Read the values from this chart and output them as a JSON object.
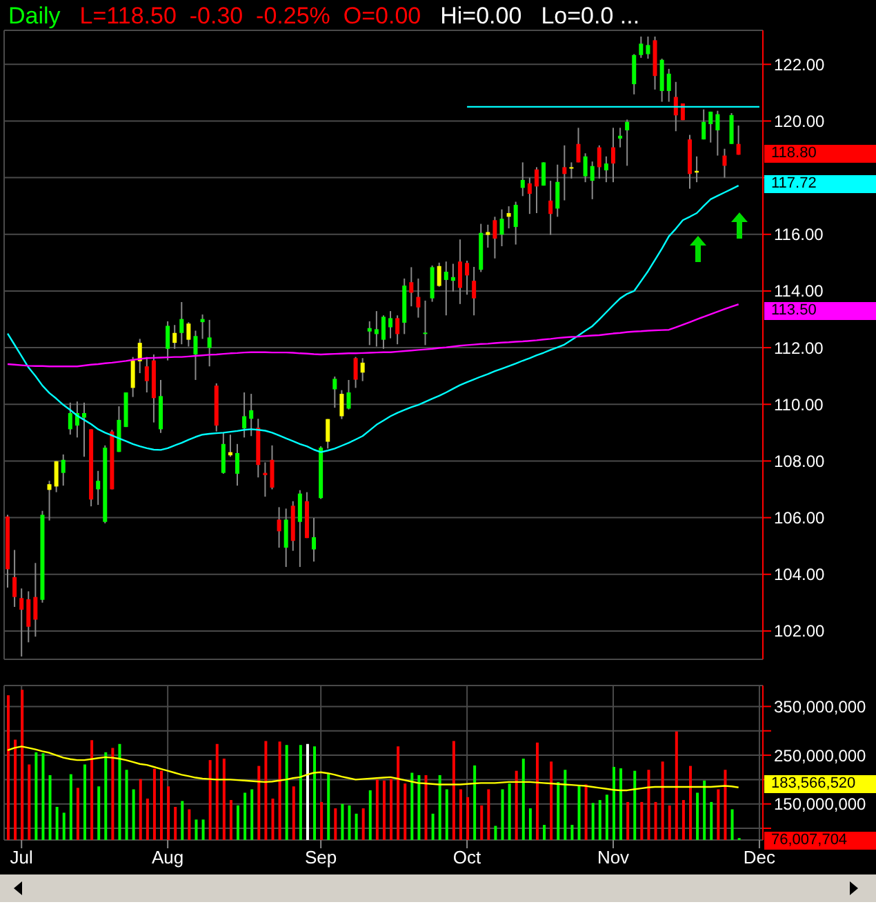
{
  "chart_data": [
    {
      "type": "candlestick",
      "title": "Daily",
      "subtitle": "L=118.50  -0.30  -0.25%  O=0.00",
      "annotations": [
        "Hi=0.00",
        "Lo=0.0 ...",
        "118.80",
        "117.72",
        "113.50"
      ],
      "categories": [
        null,
        null,
        "Jul",
        null,
        null,
        null,
        null,
        null,
        null,
        null,
        null,
        null,
        null,
        null,
        null,
        null,
        null,
        null,
        null,
        null,
        null,
        null,
        null,
        "Aug",
        null,
        null,
        null,
        null,
        null,
        null,
        null,
        null,
        null,
        null,
        null,
        null,
        null,
        null,
        null,
        null,
        null,
        null,
        null,
        null,
        null,
        "Sep",
        null,
        null,
        null,
        null,
        null,
        null,
        null,
        null,
        null,
        null,
        null,
        null,
        null,
        null,
        null,
        null,
        null,
        null,
        null,
        null,
        "Oct",
        null,
        null,
        null,
        null,
        null,
        null,
        null,
        null,
        null,
        null,
        null,
        null,
        null,
        null,
        null,
        null,
        null,
        null,
        null,
        null,
        "Nov",
        null,
        null,
        null,
        null,
        null,
        null,
        null,
        null,
        null,
        null,
        null,
        null,
        null,
        null,
        null,
        null,
        null,
        null,
        null,
        null,
        "Dec"
      ],
      "ohlc": [
        [
          106.04,
          106.1,
          103.53,
          104.18
        ],
        [
          103.9,
          104.86,
          102.85,
          103.2
        ],
        [
          103.16,
          103.5,
          101.1,
          102.75
        ],
        [
          103.12,
          103.4,
          101.6,
          102.15
        ],
        [
          103.2,
          104.4,
          101.8,
          102.4
        ],
        [
          103.1,
          106.24,
          103.0,
          106.1
        ],
        [
          106.98,
          107.3,
          105.9,
          107.18
        ],
        [
          107.1,
          108.0,
          106.9,
          107.99
        ],
        [
          107.58,
          108.23,
          107.13,
          108.04
        ],
        [
          109.12,
          110.06,
          108.93,
          109.69
        ],
        [
          109.25,
          110.1,
          108.83,
          109.69
        ],
        [
          109.53,
          110.06,
          108.15,
          109.69
        ],
        [
          109.12,
          109.12,
          106.4,
          106.64
        ],
        [
          107.0,
          107.65,
          106.45,
          107.3
        ],
        [
          105.85,
          108.55,
          105.8,
          108.47
        ],
        [
          109.04,
          109.1,
          107.0,
          107.0
        ],
        [
          108.32,
          109.93,
          108.32,
          109.45
        ],
        [
          109.2,
          110.42,
          109.2,
          110.42
        ],
        [
          110.58,
          111.67,
          110.26,
          111.55
        ],
        [
          111.52,
          112.31,
          111.1,
          112.17
        ],
        [
          111.34,
          111.67,
          110.42,
          110.82
        ],
        [
          111.55,
          111.76,
          109.36,
          110.22
        ],
        [
          109.12,
          110.86,
          108.99,
          110.29
        ],
        [
          111.96,
          112.93,
          111.55,
          112.77
        ],
        [
          112.17,
          112.8,
          111.96,
          112.52
        ],
        [
          112.52,
          113.61,
          112.12,
          113.01
        ],
        [
          112.28,
          112.9,
          112.04,
          112.85
        ],
        [
          111.76,
          112.6,
          110.86,
          112.41
        ],
        [
          112.9,
          113.17,
          112.31,
          113.01
        ],
        [
          111.99,
          112.98,
          111.34,
          112.36
        ],
        [
          110.66,
          110.74,
          109.04,
          109.25
        ],
        [
          107.58,
          108.99,
          107.55,
          108.6
        ],
        [
          108.2,
          108.93,
          108.15,
          108.31
        ],
        [
          107.55,
          108.6,
          107.13,
          108.28
        ],
        [
          109.15,
          110.42,
          108.83,
          109.58
        ],
        [
          109.49,
          110.37,
          108.88,
          109.79
        ],
        [
          109.17,
          109.49,
          107.42,
          107.86
        ],
        [
          107.58,
          107.95,
          106.74,
          107.5
        ],
        [
          108.04,
          108.55,
          107.0,
          107.06
        ],
        [
          105.93,
          106.37,
          104.94,
          105.52
        ],
        [
          104.94,
          106.32,
          104.26,
          105.93
        ],
        [
          106.42,
          106.58,
          104.83,
          105.18
        ],
        [
          105.85,
          106.97,
          104.26,
          106.85
        ],
        [
          106.58,
          106.9,
          105.28,
          105.28
        ],
        [
          104.88,
          105.99,
          104.45,
          105.31
        ],
        [
          106.69,
          108.52,
          106.66,
          108.47
        ],
        [
          108.68,
          109.48,
          108.44,
          109.48
        ],
        [
          110.53,
          110.98,
          109.88,
          110.9
        ],
        [
          109.58,
          110.5,
          109.48,
          110.37
        ],
        [
          109.85,
          110.86,
          109.82,
          110.42
        ],
        [
          111.63,
          111.67,
          110.58,
          110.87
        ],
        [
          111.12,
          111.63,
          110.82,
          111.47
        ],
        [
          112.57,
          112.93,
          112.09,
          112.69
        ],
        [
          112.48,
          113.29,
          112.04,
          112.65
        ],
        [
          112.28,
          113.14,
          111.96,
          113.09
        ],
        [
          112.72,
          113.29,
          112.33,
          113.04
        ],
        [
          113.04,
          113.14,
          112.12,
          112.48
        ],
        [
          112.88,
          114.44,
          112.48,
          114.19
        ],
        [
          114.31,
          114.84,
          113.46,
          113.94
        ],
        [
          113.79,
          114.44,
          113.06,
          113.42
        ],
        [
          112.49,
          113.66,
          112.09,
          112.53
        ],
        [
          113.74,
          114.9,
          113.62,
          114.84
        ],
        [
          114.18,
          115.0,
          114.15,
          114.88
        ],
        [
          114.39,
          115.04,
          113.14,
          114.68
        ],
        [
          114.36,
          114.96,
          113.98,
          114.49
        ],
        [
          115.04,
          115.82,
          113.54,
          114.11
        ],
        [
          114.99,
          115.07,
          113.87,
          114.55
        ],
        [
          114.36,
          114.85,
          113.14,
          113.74
        ],
        [
          114.75,
          116.37,
          114.67,
          116.05
        ],
        [
          115.98,
          116.34,
          115.53,
          116.08
        ],
        [
          116.5,
          116.62,
          115.15,
          115.85
        ],
        [
          115.99,
          116.88,
          115.58,
          116.55
        ],
        [
          116.62,
          116.99,
          116.21,
          116.75
        ],
        [
          116.26,
          117.15,
          115.64,
          117.04
        ],
        [
          117.64,
          118.54,
          117.35,
          117.92
        ],
        [
          117.8,
          118.0,
          116.72,
          117.43
        ],
        [
          118.29,
          118.37,
          116.75,
          117.69
        ],
        [
          117.72,
          118.54,
          117.72,
          118.54
        ],
        [
          117.19,
          117.89,
          115.98,
          116.72
        ],
        [
          116.91,
          118.46,
          116.62,
          117.85
        ],
        [
          118.37,
          119.14,
          117.2,
          118.13
        ],
        [
          118.32,
          118.54,
          117.97,
          118.37
        ],
        [
          119.19,
          119.76,
          118.54,
          118.54
        ],
        [
          118.05,
          118.86,
          117.84,
          118.75
        ],
        [
          117.89,
          118.57,
          117.24,
          118.41
        ],
        [
          119.07,
          119.14,
          117.97,
          118.37
        ],
        [
          118.26,
          118.75,
          117.84,
          118.5
        ],
        [
          119.07,
          119.76,
          117.84,
          118.5
        ],
        [
          119.38,
          119.76,
          119.07,
          119.48
        ],
        [
          119.67,
          120.05,
          118.42,
          119.97
        ],
        [
          121.3,
          122.36,
          120.94,
          122.33
        ],
        [
          122.33,
          122.98,
          122.23,
          122.73
        ],
        [
          122.36,
          122.98,
          122.2,
          122.68
        ],
        [
          122.85,
          122.98,
          121.11,
          121.59
        ],
        [
          121.06,
          122.2,
          120.68,
          122.16
        ],
        [
          121.06,
          121.84,
          120.68,
          121.67
        ],
        [
          120.85,
          121.38,
          119.64,
          120.2
        ],
        [
          120.62,
          120.62,
          120.03,
          120.03
        ],
        [
          119.35,
          119.51,
          117.61,
          118.13
        ],
        [
          118.18,
          118.75,
          117.84,
          118.24
        ],
        [
          119.35,
          120.41,
          119.35,
          119.97
        ],
        [
          119.89,
          120.33,
          119.24,
          120.33
        ],
        [
          119.67,
          120.36,
          118.78,
          120.24
        ],
        [
          118.78,
          119.02,
          118.0,
          118.42
        ],
        [
          119.19,
          120.28,
          119.19,
          120.21
        ],
        [
          119.19,
          119.84,
          118.81,
          118.81
        ],
        null,
        null,
        null
      ],
      "colors": [
        "#ff0000",
        "#ff0000",
        "#ff0000",
        "#ff0000",
        "#ff0000",
        "#00ff00",
        "#ffff00",
        "#ffff00",
        "#00ff00",
        "#00ff00",
        "#00ff00",
        "#00ff00",
        "#ff0000",
        "#00ff00",
        "#00ff00",
        "#ff0000",
        "#00ff00",
        "#00ff00",
        "#ffff00",
        "#ffff00",
        "#ff0000",
        "#ff0000",
        "#00ff00",
        "#00ff00",
        "#ffff00",
        "#00ff00",
        "#ffff00",
        "#00ff00",
        "#00ff00",
        "#00ff00",
        "#ff0000",
        "#00ff00",
        "#ffff00",
        "#00ff00",
        "#00ff00",
        "#00ff00",
        "#ff0000",
        "#ff0000",
        "#ff0000",
        "#ff0000",
        "#00ff00",
        "#ff0000",
        "#00ff00",
        "#ff0000",
        "#00ff00",
        "#00ff00",
        "#ffff00",
        "#00ff00",
        "#ffff00",
        "#00ff00",
        "#ff0000",
        "#ffff00",
        "#00ff00",
        "#00ff00",
        "#00ff00",
        "#00ff00",
        "#ff0000",
        "#00ff00",
        "#ff0000",
        "#ff0000",
        "#00ff00",
        "#00ff00",
        "#ffff00",
        "#00ff00",
        "#00ff00",
        "#ff0000",
        "#ff0000",
        "#ff0000",
        "#00ff00",
        "#ffff00",
        "#ff0000",
        "#00ff00",
        "#ffff00",
        "#00ff00",
        "#00ff00",
        "#ff0000",
        "#ff0000",
        "#00ff00",
        "#ff0000",
        "#00ff00",
        "#ff0000",
        "#ffff00",
        "#ff0000",
        "#00ff00",
        "#00ff00",
        "#ff0000",
        "#00ff00",
        "#ff0000",
        "#00ff00",
        "#00ff00",
        "#00ff00",
        "#00ff00",
        "#00ff00",
        "#ff0000",
        "#00ff00",
        "#00ff00",
        "#ff0000",
        "#ff0000",
        "#ff0000",
        "#ffff00",
        "#00ff00",
        "#00ff00",
        "#00ff00",
        "#ff0000",
        "#00ff00",
        "#ff0000",
        null,
        null,
        null
      ],
      "series": [
        {
          "type": "line",
          "color": "#00ffff",
          "values": [
            112.5,
            112.1,
            111.7,
            111.3,
            111.0,
            110.66,
            110.4,
            110.2,
            109.98,
            109.8,
            109.6,
            109.45,
            109.3,
            109.12,
            109.0,
            108.9,
            108.8,
            108.7,
            108.6,
            108.52,
            108.45,
            108.4,
            108.39,
            108.45,
            108.55,
            108.64,
            108.75,
            108.85,
            108.93,
            108.96,
            108.98,
            109.0,
            109.03,
            109.06,
            109.1,
            109.12,
            109.1,
            109.07,
            109.0,
            108.9,
            108.8,
            108.7,
            108.6,
            108.52,
            108.4,
            108.31,
            108.37,
            108.44,
            108.54,
            108.64,
            108.76,
            108.88,
            109.08,
            109.28,
            109.43,
            109.58,
            109.7,
            109.8,
            109.9,
            109.98,
            110.09,
            110.2,
            110.3,
            110.42,
            110.55,
            110.68,
            110.78,
            110.88,
            110.98,
            111.07,
            111.17,
            111.26,
            111.35,
            111.44,
            111.54,
            111.63,
            111.73,
            111.82,
            111.92,
            112.01,
            112.11,
            112.27,
            112.43,
            112.6,
            112.76,
            113.0,
            113.25,
            113.5,
            113.74,
            113.9,
            114.0,
            114.35,
            114.7,
            115.1,
            115.5,
            115.93,
            116.2,
            116.5,
            116.62,
            116.75,
            117.0,
            117.24,
            117.36,
            117.48,
            117.6,
            117.72,
            null,
            null,
            null
          ]
        },
        {
          "type": "line",
          "color": "#ff00ff",
          "values": [
            111.42,
            111.4,
            111.38,
            111.36,
            111.35,
            111.35,
            111.34,
            111.34,
            111.34,
            111.34,
            111.34,
            111.37,
            111.4,
            111.42,
            111.45,
            111.47,
            111.5,
            111.53,
            111.57,
            111.6,
            111.63,
            111.64,
            111.65,
            111.66,
            111.67,
            111.67,
            111.69,
            111.71,
            111.73,
            111.75,
            111.76,
            111.78,
            111.8,
            111.81,
            111.83,
            111.84,
            111.84,
            111.84,
            111.83,
            111.83,
            111.83,
            111.82,
            111.8,
            111.79,
            111.77,
            111.76,
            111.77,
            111.78,
            111.79,
            111.8,
            111.8,
            111.81,
            111.82,
            111.83,
            111.84,
            111.84,
            111.86,
            111.88,
            111.9,
            111.92,
            111.94,
            111.96,
            111.99,
            112.01,
            112.04,
            112.07,
            112.09,
            112.11,
            112.13,
            112.14,
            112.16,
            112.18,
            112.19,
            112.21,
            112.22,
            112.24,
            112.26,
            112.29,
            112.31,
            112.34,
            112.36,
            112.38,
            112.39,
            112.41,
            112.43,
            112.44,
            112.47,
            112.5,
            112.52,
            112.55,
            112.57,
            112.58,
            112.6,
            112.61,
            112.62,
            112.63,
            112.72,
            112.81,
            112.9,
            113.0,
            113.09,
            113.18,
            113.27,
            113.36,
            113.45,
            113.53,
            null,
            null,
            null
          ]
        },
        {
          "type": "line",
          "color": "#00ffff",
          "x": [
            "Oct",
            "Dec"
          ],
          "values": [
            120.5,
            120.5
          ]
        }
      ],
      "ylim": [
        101,
        123.2
      ],
      "yticks": [
        {
          "value": 102,
          "label": "102.00"
        },
        {
          "value": 104,
          "label": "104.00"
        },
        {
          "value": 106,
          "label": "106.00"
        },
        {
          "value": 108,
          "label": "108.00"
        },
        {
          "value": 110,
          "label": "110.00"
        },
        {
          "value": 112,
          "label": "112.00"
        },
        {
          "value": 114,
          "label": "114.00"
        },
        {
          "value": 116,
          "label": "116.00"
        },
        {
          "value": 118,
          "label": null
        },
        {
          "value": 120,
          "label": "120.00"
        },
        {
          "value": 122,
          "label": "122.00"
        }
      ],
      "grid": true,
      "tick_labels": "y"
    },
    {
      "type": "bar",
      "annotations": [
        "183,566,520",
        "76,007,704"
      ],
      "categories": [
        null,
        null,
        "Jul",
        null,
        null,
        null,
        null,
        null,
        null,
        null,
        null,
        null,
        null,
        null,
        null,
        null,
        null,
        null,
        null,
        null,
        null,
        null,
        null,
        "Aug",
        null,
        null,
        null,
        null,
        null,
        null,
        null,
        null,
        null,
        null,
        null,
        null,
        null,
        null,
        null,
        null,
        null,
        null,
        null,
        null,
        null,
        "Sep",
        null,
        null,
        null,
        null,
        null,
        null,
        null,
        null,
        null,
        null,
        null,
        null,
        null,
        null,
        null,
        null,
        null,
        null,
        null,
        null,
        "Oct",
        null,
        null,
        null,
        null,
        null,
        null,
        null,
        null,
        null,
        null,
        null,
        null,
        null,
        null,
        null,
        null,
        null,
        null,
        null,
        null,
        "Nov",
        null,
        null,
        null,
        null,
        null,
        null,
        null,
        null,
        null,
        null,
        null,
        null,
        null,
        null,
        null,
        null,
        null,
        null,
        null,
        null,
        "Dec"
      ],
      "series": [
        {
          "type": "bar",
          "colors": [
            "#ff0000",
            "#ff0000",
            "#ff0000",
            "#ff0000",
            "#00ff00",
            "#00ff00",
            "#00ff00",
            "#00ff00",
            "#00ff00",
            "#00ff00",
            "#ff0000",
            "#00ff00",
            "#ff0000",
            "#00ff00",
            "#00ff00",
            "#ff0000",
            "#00ff00",
            "#00ff00",
            "#00ff00",
            "#ff0000",
            "#ff0000",
            "#ff0000",
            "#ff0000",
            "#ff0000",
            "#ff0000",
            "#00ff00",
            "#ff0000",
            "#00ff00",
            "#00ff00",
            "#ff0000",
            "#ff0000",
            "#ff0000",
            "#ff0000",
            "#00ff00",
            "#00ff00",
            "#00ff00",
            "#ff0000",
            "#ff0000",
            "#ff0000",
            "#ff0000",
            "#00ff00",
            "#ff0000",
            "#00ff00",
            "#ffffff",
            "#00ff00",
            "#ff0000",
            "#00ff00",
            "#ff0000",
            "#00ff00",
            "#00ff00",
            "#00ff00",
            "#ff0000",
            "#00ff00",
            "#ff0000",
            "#ff0000",
            "#ff0000",
            "#ff0000",
            "#ff0000",
            "#00ff00",
            "#00ff00",
            "#ff0000",
            "#00ff00",
            "#00ff00",
            "#00ff00",
            "#ff0000",
            "#ff0000",
            "#ff0000",
            "#00ff00",
            "#ff0000",
            "#ff0000",
            "#00ff00",
            "#00ff00",
            "#00ff00",
            "#ff0000",
            "#00ff00",
            "#00ff00",
            "#ff0000",
            "#00ff00",
            "#ff0000",
            "#00ff00",
            "#00ff00",
            "#00ff00",
            "#00ff00",
            "#ff0000",
            "#00ff00",
            "#00ff00",
            "#00ff00",
            "#00ff00",
            "#00ff00",
            "#ff0000",
            "#00ff00",
            "#ff0000",
            "#ff0000",
            "#ff0000",
            "#ff0000",
            "#ff0000",
            "#ff0000",
            "#ff0000",
            "#ff0000",
            "#00ff00",
            "#00ff00",
            "#00ff00",
            "#ff0000",
            "#ff0000",
            "#00ff00",
            "#00ff00",
            null,
            null,
            null
          ],
          "values": [
            373000000,
            282000000,
            384000000,
            231000000,
            256000000,
            254000000,
            209000000,
            144000000,
            132000000,
            211000000,
            183000000,
            231000000,
            281000000,
            186000000,
            256000000,
            265000000,
            273000000,
            220000000,
            180000000,
            201000000,
            161000000,
            222000000,
            218000000,
            186000000,
            144000000,
            156000000,
            139000000,
            118000000,
            118000000,
            240000000,
            273000000,
            243000000,
            158000000,
            147000000,
            173000000,
            180000000,
            228000000,
            279000000,
            161000000,
            278000000,
            271000000,
            186000000,
            271000000,
            273000000,
            268000000,
            154000000,
            212000000,
            141000000,
            150000000,
            147000000,
            130000000,
            141000000,
            178000000,
            200000000,
            198000000,
            201000000,
            268000000,
            192000000,
            214000000,
            209000000,
            209000000,
            130000000,
            209000000,
            180000000,
            279000000,
            180000000,
            164000000,
            229000000,
            147000000,
            180000000,
            105000000,
            180000000,
            192000000,
            218000000,
            243000000,
            141000000,
            276000000,
            107000000,
            237000000,
            195000000,
            220000000,
            107000000,
            189000000,
            190000000,
            152000000,
            158000000,
            169000000,
            226000000,
            223000000,
            154000000,
            218000000,
            154000000,
            220000000,
            154000000,
            237000000,
            147000000,
            299000000,
            158000000,
            228000000,
            173000000,
            198000000,
            154000000,
            180000000,
            220000000,
            139000000,
            80000000,
            null,
            null,
            null
          ]
        },
        {
          "type": "line",
          "color": "#ffff00",
          "values": [
            260000000,
            265000000,
            268000000,
            265000000,
            262000000,
            258000000,
            255000000,
            250000000,
            245000000,
            242000000,
            240000000,
            240000000,
            242000000,
            244000000,
            246000000,
            245000000,
            243000000,
            240000000,
            236000000,
            232000000,
            230000000,
            226000000,
            222000000,
            218000000,
            214000000,
            210000000,
            207000000,
            204000000,
            202000000,
            201000000,
            200000000,
            200000000,
            200000000,
            199000000,
            198000000,
            197000000,
            196000000,
            195000000,
            196000000,
            198000000,
            200000000,
            203000000,
            205000000,
            210000000,
            214000000,
            215000000,
            213000000,
            210000000,
            206000000,
            203000000,
            200000000,
            201000000,
            202000000,
            203000000,
            204000000,
            205000000,
            202000000,
            199000000,
            196000000,
            193000000,
            192000000,
            191000000,
            190000000,
            190000000,
            190000000,
            190000000,
            191000000,
            192000000,
            193000000,
            193000000,
            193000000,
            194000000,
            195000000,
            195000000,
            195000000,
            195000000,
            194000000,
            193000000,
            192000000,
            191000000,
            190000000,
            189000000,
            188000000,
            187000000,
            185000000,
            183000000,
            181000000,
            179000000,
            178000000,
            178000000,
            180000000,
            182000000,
            184000000,
            185000000,
            185000000,
            185000000,
            185000000,
            185000000,
            185000000,
            185000000,
            185000000,
            185000000,
            186000000,
            187000000,
            186000000,
            184000000,
            null,
            null,
            null
          ]
        }
      ],
      "ylim": [
        76007704,
        393000000
      ],
      "yticks": [
        {
          "value": 100000000,
          "label": null
        },
        {
          "value": 150000000,
          "label": "150,000,000"
        },
        {
          "value": 200000000,
          "label": null
        },
        {
          "value": 250000000,
          "label": "250,000,000"
        },
        {
          "value": 300000000,
          "label": null
        },
        {
          "value": 350000000,
          "label": "350,000,000"
        }
      ],
      "grid": true
    }
  ]
}
